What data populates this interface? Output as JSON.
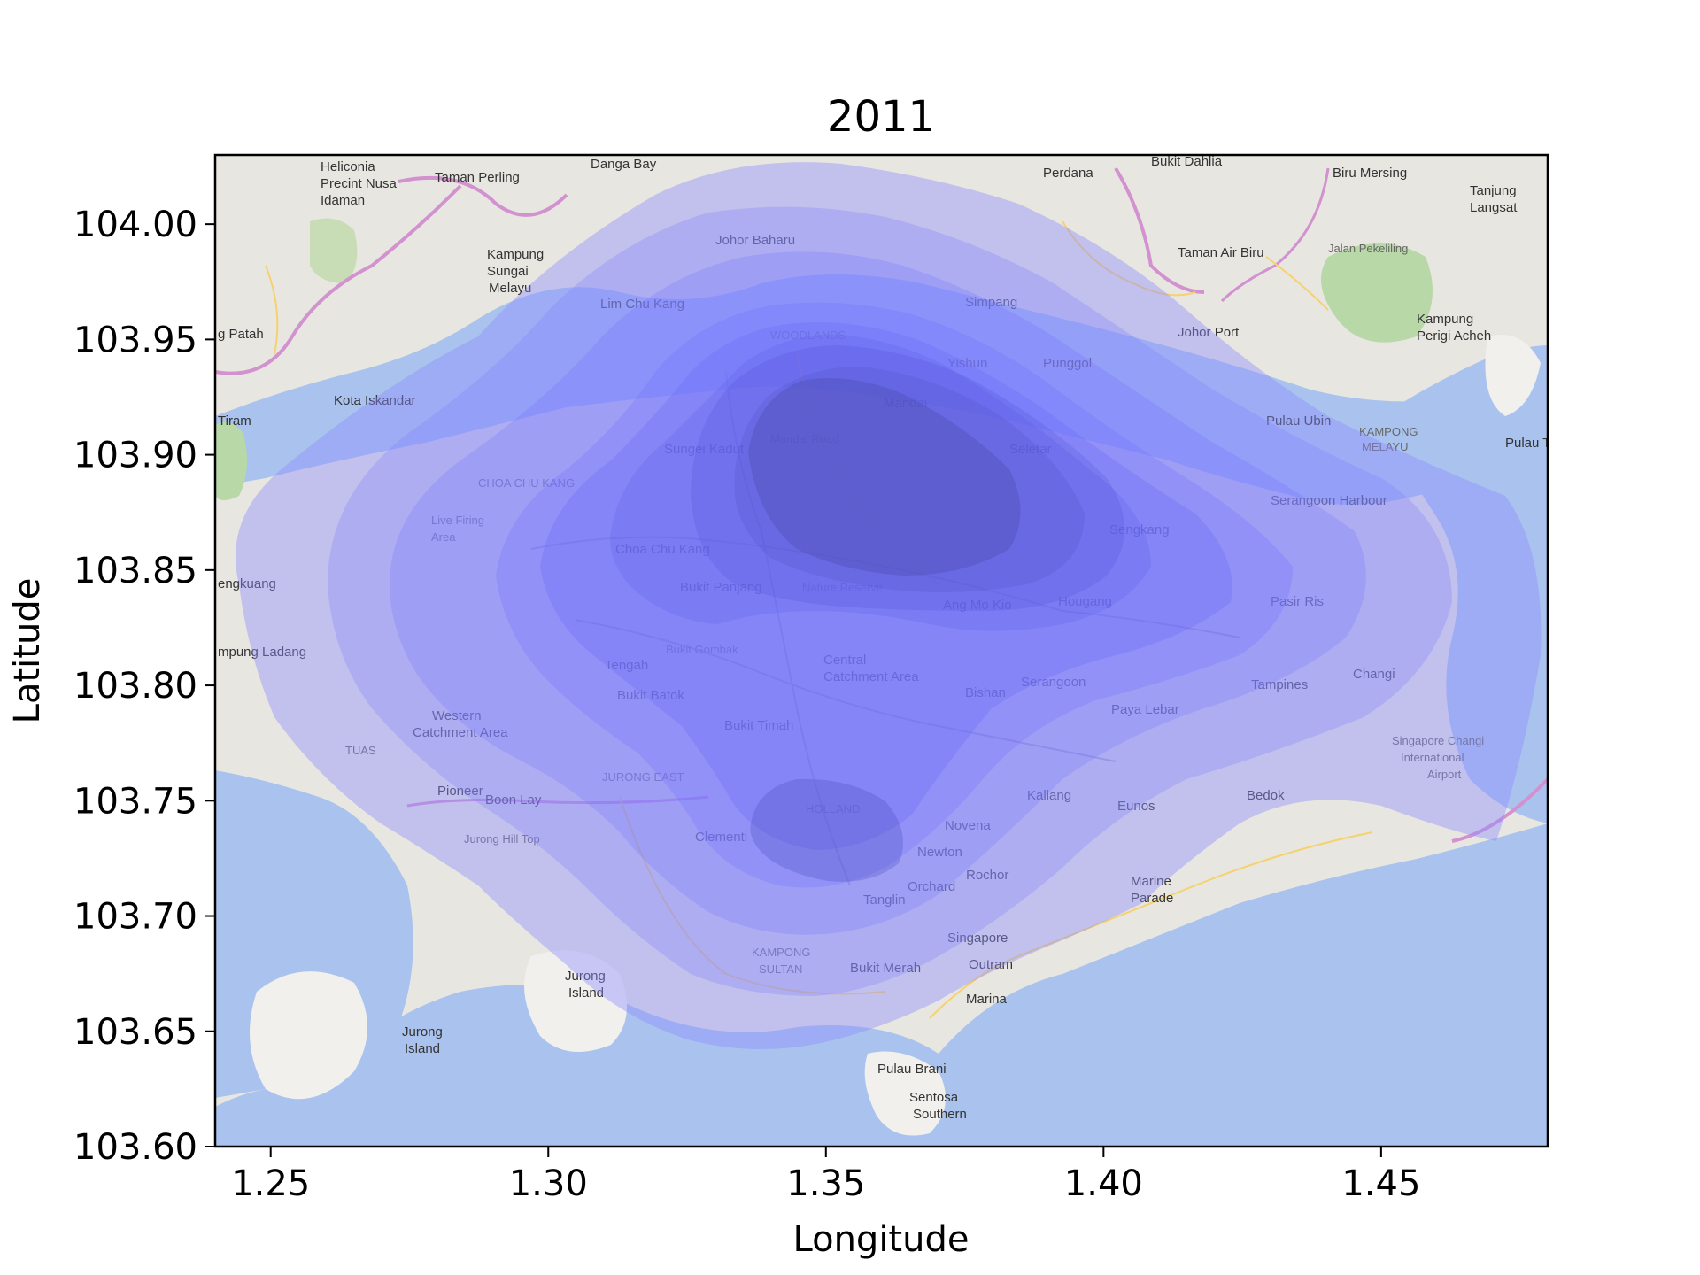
{
  "chart_data": {
    "type": "heatmap",
    "title": "2011",
    "xlabel": "Longitude",
    "ylabel": "Latitude",
    "xlim": [
      1.24,
      1.48
    ],
    "ylim": [
      103.6,
      104.03
    ],
    "xticks": [
      1.25,
      1.3,
      1.35,
      1.4,
      1.45
    ],
    "xtick_labels": [
      "1.25",
      "1.30",
      "1.35",
      "1.40",
      "1.45"
    ],
    "yticks": [
      103.6,
      103.65,
      103.7,
      103.75,
      103.8,
      103.85,
      103.9,
      103.95,
      104.0
    ],
    "ytick_labels": [
      "103.60",
      "103.65",
      "103.70",
      "103.75",
      "103.80",
      "103.85",
      "103.90",
      "103.95",
      "104.00"
    ],
    "grid": false,
    "density_peaks": [
      {
        "x": 1.365,
        "y": 103.88,
        "level": "highest"
      },
      {
        "x": 1.349,
        "y": 103.735,
        "level": "secondary"
      }
    ],
    "contour_levels": 10,
    "contour_color": "#6a6aff",
    "background": "street map of Singapore"
  },
  "map_labels": [
    {
      "text": "Heliconia",
      "x": 1.259,
      "y": 104.03
    },
    {
      "text": "Precint Nusa",
      "x": 1.259,
      "y": 104.023
    },
    {
      "text": "Idaman",
      "x": 1.259,
      "y": 104.016
    },
    {
      "text": "Taman Perling",
      "x": 1.28,
      "y": 104.025
    },
    {
      "text": "Danga Bay",
      "x": 1.309,
      "y": 104.031
    },
    {
      "text": "Johor Baharu",
      "x": 1.33,
      "y": 103.995
    },
    {
      "text": "Kampung",
      "x": 1.289,
      "y": 103.985
    },
    {
      "text": "Sungai",
      "x": 1.289,
      "y": 103.978
    },
    {
      "text": "Melayu",
      "x": 1.29,
      "y": 103.971
    },
    {
      "text": "Lim Chu Kang",
      "x": 1.311,
      "y": 103.964
    },
    {
      "text": "Bukit Dahlia",
      "x": 1.409,
      "y": 104.031
    },
    {
      "text": "Perdana",
      "x": 1.389,
      "y": 104.023
    },
    {
      "text": "Biru Mersing",
      "x": 1.442,
      "y": 104.026
    },
    {
      "text": "Tanjung",
      "x": 1.469,
      "y": 104.017
    },
    {
      "text": "Langsat",
      "x": 1.469,
      "y": 104.01
    },
    {
      "text": "Taman Air Biru",
      "x": 1.413,
      "y": 103.986
    },
    {
      "text": "Jalan Pekeliling",
      "x": 1.444,
      "y": 103.988
    },
    {
      "text": "Johor Port",
      "x": 1.413,
      "y": 103.953
    },
    {
      "text": "Kampung",
      "x": 1.447,
      "y": 103.957
    },
    {
      "text": "Perigi Acheh",
      "x": 1.447,
      "y": 103.95
    },
    {
      "text": "Simpang",
      "x": 1.375,
      "y": 103.966
    },
    {
      "text": "WOODLANDS",
      "x": 1.345,
      "y": 103.951
    },
    {
      "text": "Yishun",
      "x": 1.371,
      "y": 103.935
    },
    {
      "text": "Punggol",
      "x": 1.395,
      "y": 103.935
    },
    {
      "text": "Mandai",
      "x": 1.361,
      "y": 103.918
    },
    {
      "text": "Mandai Road",
      "x": 1.347,
      "y": 103.901
    },
    {
      "text": "Seletar",
      "x": 1.383,
      "y": 103.897
    },
    {
      "text": "Sungei Kadut",
      "x": 1.324,
      "y": 103.897
    },
    {
      "text": "CHOA CHU KANG",
      "x": 1.3,
      "y": 103.878
    },
    {
      "text": "Live Firing",
      "x": 1.281,
      "y": 103.867
    },
    {
      "text": "Area",
      "x": 1.281,
      "y": 103.86
    },
    {
      "text": "Choa Chu Kang",
      "x": 1.32,
      "y": 103.855
    },
    {
      "text": "Sengkang",
      "x": 1.401,
      "y": 103.865
    },
    {
      "text": "Pulau Ubin",
      "x": 1.431,
      "y": 103.911
    },
    {
      "text": "KAMPONG",
      "x": 1.447,
      "y": 103.904
    },
    {
      "text": "MELAYU",
      "x": 1.447,
      "y": 103.897
    },
    {
      "text": "Pulau T",
      "x": 1.477,
      "y": 103.9
    },
    {
      "text": "Serangoon Harbour",
      "x": 1.44,
      "y": 103.878
    },
    {
      "text": "Bukit Panjang",
      "x": 1.32,
      "y": 103.839
    },
    {
      "text": "Nature Reserve",
      "x": 1.353,
      "y": 103.839
    },
    {
      "text": "Ang Mo Kio",
      "x": 1.375,
      "y": 103.834
    },
    {
      "text": "Hougang",
      "x": 1.4,
      "y": 103.835
    },
    {
      "text": "Pasir Ris",
      "x": 1.441,
      "y": 103.835
    },
    {
      "text": "Tengah",
      "x": 1.31,
      "y": 103.808
    },
    {
      "text": "Bukit Gombak",
      "x": 1.328,
      "y": 103.814
    },
    {
      "text": "Central",
      "x": 1.353,
      "y": 103.81
    },
    {
      "text": "Catchment Area",
      "x": 1.357,
      "y": 103.803
    },
    {
      "text": "Tampines",
      "x": 1.439,
      "y": 103.8
    },
    {
      "text": "Changi",
      "x": 1.456,
      "y": 103.805
    },
    {
      "text": "Bukit Batok",
      "x": 1.316,
      "y": 103.795
    },
    {
      "text": "Bishan",
      "x": 1.379,
      "y": 103.796
    },
    {
      "text": "Serangoon",
      "x": 1.392,
      "y": 103.8
    },
    {
      "text": "Paya Lebar",
      "x": 1.407,
      "y": 103.787
    },
    {
      "text": "Western",
      "x": 1.284,
      "y": 103.782
    },
    {
      "text": "Catchment Area",
      "x": 1.284,
      "y": 103.775
    },
    {
      "text": "Bukit Timah",
      "x": 1.34,
      "y": 103.781
    },
    {
      "text": "TUAS",
      "x": 1.265,
      "y": 103.766
    },
    {
      "text": "Singapore Changi",
      "x": 1.461,
      "y": 103.773
    },
    {
      "text": "International",
      "x": 1.461,
      "y": 103.766
    },
    {
      "text": "Airport",
      "x": 1.461,
      "y": 103.759
    },
    {
      "text": "JURONG EAST",
      "x": 1.312,
      "y": 103.758
    },
    {
      "text": "Pioneer",
      "x": 1.285,
      "y": 103.752
    },
    {
      "text": "Boon Lay",
      "x": 1.294,
      "y": 103.748
    },
    {
      "text": "Kallang",
      "x": 1.391,
      "y": 103.748
    },
    {
      "text": "Eunos",
      "x": 1.406,
      "y": 103.743
    },
    {
      "text": "Bedok",
      "x": 1.425,
      "y": 103.748
    },
    {
      "text": "HOLLAND",
      "x": 1.351,
      "y": 103.742
    },
    {
      "text": "Jurong Hill Top",
      "x": 1.292,
      "y": 103.73
    },
    {
      "text": "Clementi",
      "x": 1.332,
      "y": 103.73
    },
    {
      "text": "Novena",
      "x": 1.376,
      "y": 103.735
    },
    {
      "text": "Newton",
      "x": 1.371,
      "y": 103.723
    },
    {
      "text": "Orchard",
      "x": 1.361,
      "y": 103.71
    },
    {
      "text": "Rochor",
      "x": 1.38,
      "y": 103.715
    },
    {
      "text": "Marine",
      "x": 1.41,
      "y": 103.712
    },
    {
      "text": "Parade",
      "x": 1.41,
      "y": 103.705
    },
    {
      "text": "Tanglin",
      "x": 1.361,
      "y": 103.704
    },
    {
      "text": "Singapore",
      "x": 1.379,
      "y": 103.687
    },
    {
      "text": "KAMPONG",
      "x": 1.342,
      "y": 103.675
    },
    {
      "text": "SULTAN",
      "x": 1.342,
      "y": 103.668
    },
    {
      "text": "Bukit Merah",
      "x": 1.362,
      "y": 103.672
    },
    {
      "text": "Outram",
      "x": 1.375,
      "y": 103.673
    },
    {
      "text": "Jurong",
      "x": 1.306,
      "y": 103.668
    },
    {
      "text": "Island",
      "x": 1.306,
      "y": 103.661
    },
    {
      "text": "Marina",
      "x": 1.379,
      "y": 103.659
    },
    {
      "text": "Jurong",
      "x": 1.278,
      "y": 103.643
    },
    {
      "text": "Island",
      "x": 1.278,
      "y": 103.636
    },
    {
      "text": "Pulau Brani",
      "x": 1.356,
      "y": 103.631
    },
    {
      "text": "Sentosa",
      "x": 1.36,
      "y": 103.618
    },
    {
      "text": "Southern",
      "x": 1.36,
      "y": 103.611
    },
    {
      "text": "Kota Iskandar",
      "x": 1.268,
      "y": 103.925
    },
    {
      "text": "Tiram",
      "x": 1.244,
      "y": 103.912
    },
    {
      "text": "g Patah",
      "x": 1.244,
      "y": 103.952
    },
    {
      "text": "engkuang",
      "x": 1.246,
      "y": 103.842
    },
    {
      "text": "mpung Ladang",
      "x": 1.246,
      "y": 103.815
    }
  ]
}
